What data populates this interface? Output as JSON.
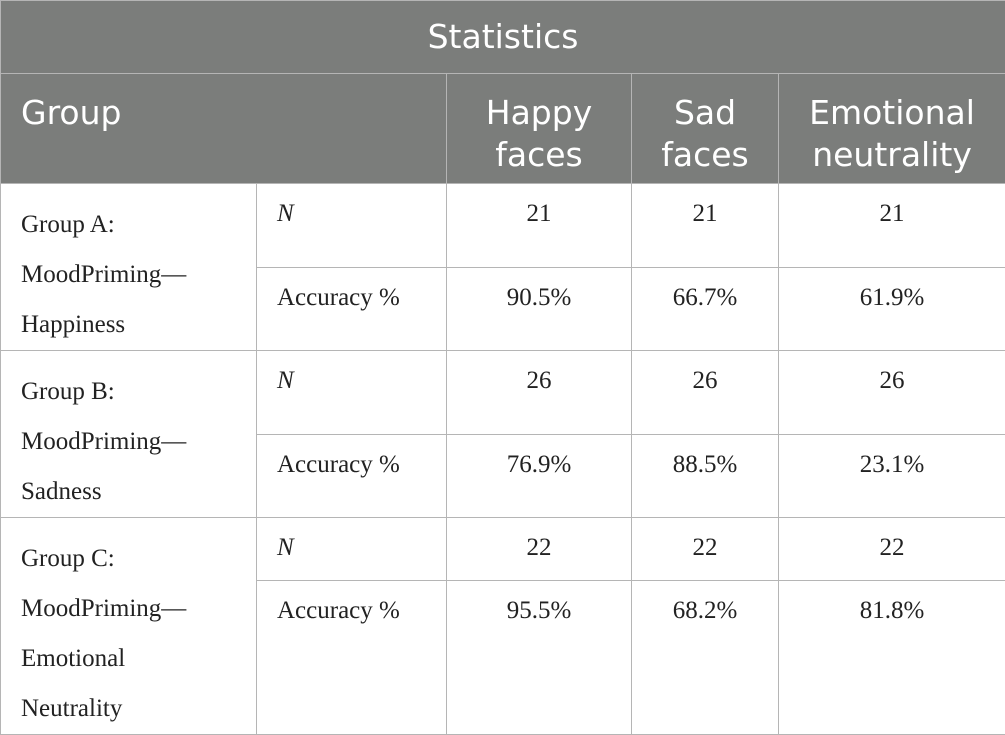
{
  "table": {
    "title": "Statistics",
    "headers": {
      "group": "Group",
      "happy": "Happy faces",
      "sad": "Sad faces",
      "neutral": "Emotional neutrality"
    },
    "header_lines": {
      "happy": [
        "Happy",
        "faces"
      ],
      "sad": [
        "Sad",
        "faces"
      ],
      "neutral": [
        "Emotional",
        "neutrality"
      ]
    },
    "groups": [
      {
        "name_lines": [
          "Group A:",
          "MoodPriming—",
          "Happiness"
        ],
        "n_label": "N",
        "acc_label": "Accuracy %",
        "n": [
          "21",
          "21",
          "21"
        ],
        "accuracy": [
          "90.5%",
          "66.7%",
          "61.9%"
        ]
      },
      {
        "name_lines": [
          "Group B:",
          "MoodPriming—",
          "Sadness"
        ],
        "n_label": "N",
        "acc_label": "Accuracy %",
        "n": [
          "26",
          "26",
          "26"
        ],
        "accuracy": [
          "76.9%",
          "88.5%",
          "23.1%"
        ]
      },
      {
        "name_lines": [
          "Group C:",
          "MoodPriming—",
          "Emotional",
          "Neutrality"
        ],
        "n_label": "N",
        "acc_label": "Accuracy %",
        "n": [
          "22",
          "22",
          "22"
        ],
        "accuracy": [
          "95.5%",
          "68.2%",
          "81.8%"
        ]
      }
    ]
  }
}
